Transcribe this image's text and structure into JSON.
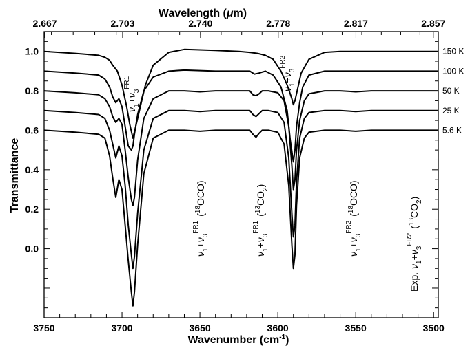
{
  "chart_data": {
    "type": "line",
    "title": "",
    "xlabel": "Wavenumber (cm⁻¹)",
    "x2label": "Wavelength (μm)",
    "ylabel": "Transmittance",
    "xlim": [
      3750,
      3497
    ],
    "ylim": [
      -0.35,
      1.1
    ],
    "x_ticks": [
      "3750",
      "3700",
      "3650",
      "3600",
      "3550",
      "3500"
    ],
    "x_tick_values": [
      3750,
      3700,
      3650,
      3600,
      3550,
      3500
    ],
    "y_ticks": [
      "0.0",
      "0.2",
      "0.4",
      "0.6",
      "0.8",
      "1.0"
    ],
    "y_tick_values": [
      0.0,
      0.2,
      0.4,
      0.6,
      0.8,
      1.0
    ],
    "top_ticks": [
      "2.667",
      "2.703",
      "2.740",
      "2.778",
      "2.817",
      "2.857"
    ],
    "top_tick_values": [
      2.667,
      2.703,
      2.74,
      2.778,
      2.817,
      2.857
    ],
    "grid": false,
    "line_color": "#000000",
    "series": [
      {
        "name": "150 K",
        "offset": 1.0,
        "x": [
          3750,
          3730,
          3715,
          3711,
          3708,
          3706,
          3703,
          3700,
          3697,
          3695,
          3693,
          3690,
          3685,
          3680,
          3670,
          3660,
          3640,
          3625,
          3618,
          3613,
          3608,
          3603,
          3598,
          3594,
          3591,
          3590,
          3589,
          3587,
          3585,
          3580,
          3570,
          3560,
          3540,
          3520,
          3497
        ],
        "values": [
          1.0,
          0.99,
          0.98,
          0.97,
          0.955,
          0.93,
          0.9,
          0.83,
          0.72,
          0.63,
          0.56,
          0.66,
          0.83,
          0.93,
          0.995,
          1.01,
          1.005,
          1.0,
          0.995,
          0.99,
          0.98,
          0.96,
          0.9,
          0.83,
          0.76,
          0.73,
          0.75,
          0.82,
          0.89,
          0.96,
          0.995,
          1.0,
          1.0,
          1.0,
          1.0
        ]
      },
      {
        "name": "100 K",
        "offset": 0.9,
        "x": [
          3750,
          3730,
          3715,
          3711,
          3708,
          3706,
          3704,
          3702,
          3700,
          3698,
          3696,
          3694,
          3693,
          3692,
          3690,
          3686,
          3680,
          3670,
          3660,
          3640,
          3625,
          3618,
          3615,
          3612,
          3608,
          3603,
          3598,
          3594,
          3592,
          3590,
          3589,
          3588,
          3586,
          3584,
          3580,
          3570,
          3560,
          3540,
          3520,
          3497
        ],
        "values": [
          0.9,
          0.89,
          0.88,
          0.86,
          0.82,
          0.77,
          0.74,
          0.76,
          0.72,
          0.62,
          0.52,
          0.5,
          0.52,
          0.58,
          0.68,
          0.8,
          0.87,
          0.9,
          0.905,
          0.9,
          0.9,
          0.9,
          0.885,
          0.89,
          0.9,
          0.88,
          0.82,
          0.7,
          0.55,
          0.44,
          0.5,
          0.62,
          0.74,
          0.82,
          0.88,
          0.9,
          0.9,
          0.9,
          0.9,
          0.9
        ]
      },
      {
        "name": "50 K",
        "offset": 0.8,
        "x": [
          3750,
          3730,
          3715,
          3711,
          3708,
          3706,
          3704,
          3702,
          3700,
          3698,
          3696,
          3694,
          3693,
          3692,
          3690,
          3686,
          3680,
          3670,
          3660,
          3650,
          3640,
          3625,
          3618,
          3616,
          3614,
          3612,
          3610,
          3606,
          3600,
          3596,
          3593,
          3591,
          3590,
          3589,
          3588,
          3586,
          3583,
          3580,
          3570,
          3560,
          3550,
          3540,
          3520,
          3497
        ],
        "values": [
          0.8,
          0.79,
          0.78,
          0.76,
          0.72,
          0.67,
          0.64,
          0.66,
          0.63,
          0.5,
          0.36,
          0.25,
          0.22,
          0.26,
          0.45,
          0.66,
          0.76,
          0.8,
          0.8,
          0.795,
          0.8,
          0.8,
          0.8,
          0.78,
          0.775,
          0.785,
          0.8,
          0.8,
          0.79,
          0.75,
          0.62,
          0.42,
          0.3,
          0.35,
          0.5,
          0.65,
          0.75,
          0.785,
          0.8,
          0.8,
          0.795,
          0.8,
          0.8,
          0.8
        ]
      },
      {
        "name": "25 K",
        "offset": 0.7,
        "x": [
          3750,
          3730,
          3715,
          3711,
          3708,
          3706,
          3704,
          3702,
          3700,
          3698,
          3696,
          3694,
          3693,
          3692,
          3690,
          3686,
          3680,
          3670,
          3660,
          3650,
          3640,
          3625,
          3618,
          3616,
          3614,
          3612,
          3610,
          3606,
          3600,
          3596,
          3593,
          3591,
          3590,
          3589,
          3588,
          3586,
          3583,
          3580,
          3570,
          3560,
          3550,
          3540,
          3520,
          3497
        ],
        "values": [
          0.7,
          0.69,
          0.68,
          0.66,
          0.6,
          0.53,
          0.46,
          0.52,
          0.47,
          0.32,
          0.12,
          -0.03,
          -0.1,
          -0.04,
          0.18,
          0.5,
          0.66,
          0.7,
          0.7,
          0.695,
          0.7,
          0.7,
          0.7,
          0.68,
          0.67,
          0.685,
          0.7,
          0.7,
          0.69,
          0.64,
          0.46,
          0.18,
          0.06,
          0.12,
          0.34,
          0.56,
          0.66,
          0.69,
          0.7,
          0.7,
          0.695,
          0.7,
          0.7,
          0.7
        ]
      },
      {
        "name": "5.6 K",
        "offset": 0.6,
        "x": [
          3750,
          3730,
          3715,
          3711,
          3708,
          3706,
          3704,
          3702,
          3700,
          3698,
          3696,
          3694,
          3693,
          3692,
          3690,
          3686,
          3680,
          3670,
          3660,
          3650,
          3640,
          3625,
          3618,
          3616,
          3614,
          3612,
          3610,
          3606,
          3600,
          3596,
          3593,
          3591,
          3590,
          3589,
          3588,
          3586,
          3583,
          3580,
          3570,
          3560,
          3550,
          3540,
          3520,
          3497
        ],
        "values": [
          0.6,
          0.59,
          0.58,
          0.56,
          0.47,
          0.36,
          0.26,
          0.35,
          0.3,
          0.12,
          -0.06,
          -0.22,
          -0.29,
          -0.22,
          0.02,
          0.38,
          0.56,
          0.6,
          0.6,
          0.595,
          0.6,
          0.6,
          0.6,
          0.58,
          0.565,
          0.585,
          0.6,
          0.6,
          0.59,
          0.53,
          0.32,
          0.02,
          -0.1,
          -0.03,
          0.22,
          0.46,
          0.56,
          0.59,
          0.6,
          0.6,
          0.595,
          0.6,
          0.6,
          0.6
        ]
      }
    ],
    "annotations": [
      {
        "lines": [
          "ν",
          "₁",
          "+ν",
          "₃",
          "FR1"
        ],
        "text": "ν1+ν3 FR1",
        "x": 3710,
        "y": 0.94
      },
      {
        "text": "ν1+ν3 FR2",
        "x": 3597,
        "y": 0.96
      },
      {
        "text": "ν1+ν3 FR1 (18OCO)",
        "x": 3650,
        "y": 0.02
      },
      {
        "text": "ν1+ν3 FR1 (13CO2)",
        "x": 3614,
        "y": 0.02
      },
      {
        "text": "ν1+ν3 FR2 (18OCO)",
        "x": 3550,
        "y": 0.02
      },
      {
        "text": "Exp. ν1+ν3 FR2 (13CO2)",
        "x": 3505,
        "y": 0.02
      }
    ]
  },
  "labels": {
    "ylabel": "Transmittance",
    "xlabel_main": "Wavenumber (cm",
    "xlabel_sup": "-1",
    "xlabel_close": ")",
    "x2label_main": "Wavelength (",
    "x2label_mu": "μ",
    "x2label_unit": "m)",
    "annot_nu": "ν",
    "annot_sub1": "1",
    "annot_sub3": "3",
    "annot_plus": "+",
    "annot_fr1": "FR1",
    "annot_fr2": "FR2",
    "annot_18oco_open": "(",
    "annot_18oco_sup": "18",
    "annot_18oco_rest": "OCO)",
    "annot_13co2_open": "(",
    "annot_13co2_sup": "13",
    "annot_13co2_co": "CO",
    "annot_13co2_sub": "2",
    "annot_13co2_close": ")",
    "annot_exp": "Exp."
  }
}
